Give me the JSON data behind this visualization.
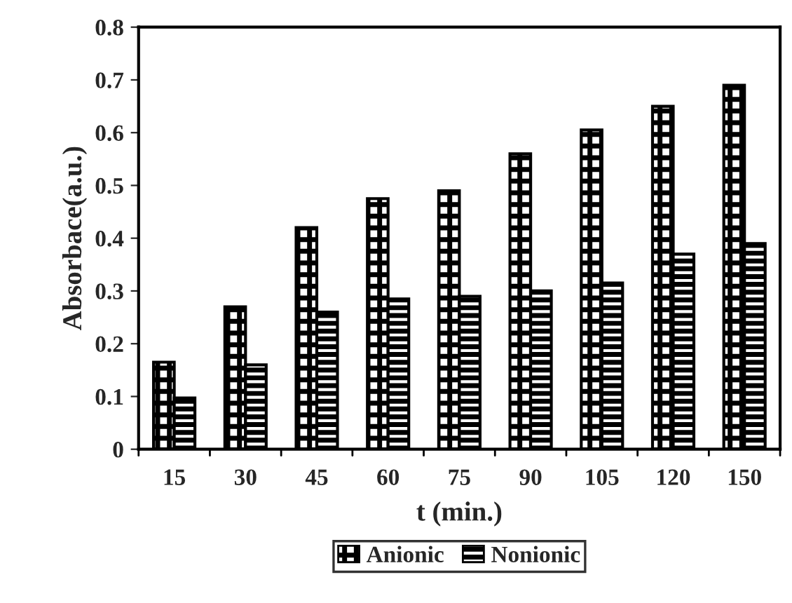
{
  "chart_data": {
    "type": "bar",
    "xlabel": "t (min.)",
    "ylabel": "Absorbace(a.u.)",
    "categories": [
      "15",
      "30",
      "45",
      "60",
      "75",
      "90",
      "105",
      "120",
      "150"
    ],
    "series": [
      {
        "name": "Anionic",
        "color": "#000000",
        "values": [
          0.165,
          0.27,
          0.42,
          0.475,
          0.49,
          0.56,
          0.605,
          0.65,
          0.69
        ]
      },
      {
        "name": "Nonionic",
        "color": "#000000",
        "values": [
          0.097,
          0.16,
          0.26,
          0.285,
          0.29,
          0.3,
          0.315,
          0.37,
          0.39
        ]
      }
    ],
    "ylim": [
      0,
      0.8
    ],
    "yticks": [
      0,
      0.1,
      0.2,
      0.3,
      0.4,
      0.5,
      0.6,
      0.7,
      0.8
    ],
    "grid": false,
    "legend": "bottom"
  }
}
